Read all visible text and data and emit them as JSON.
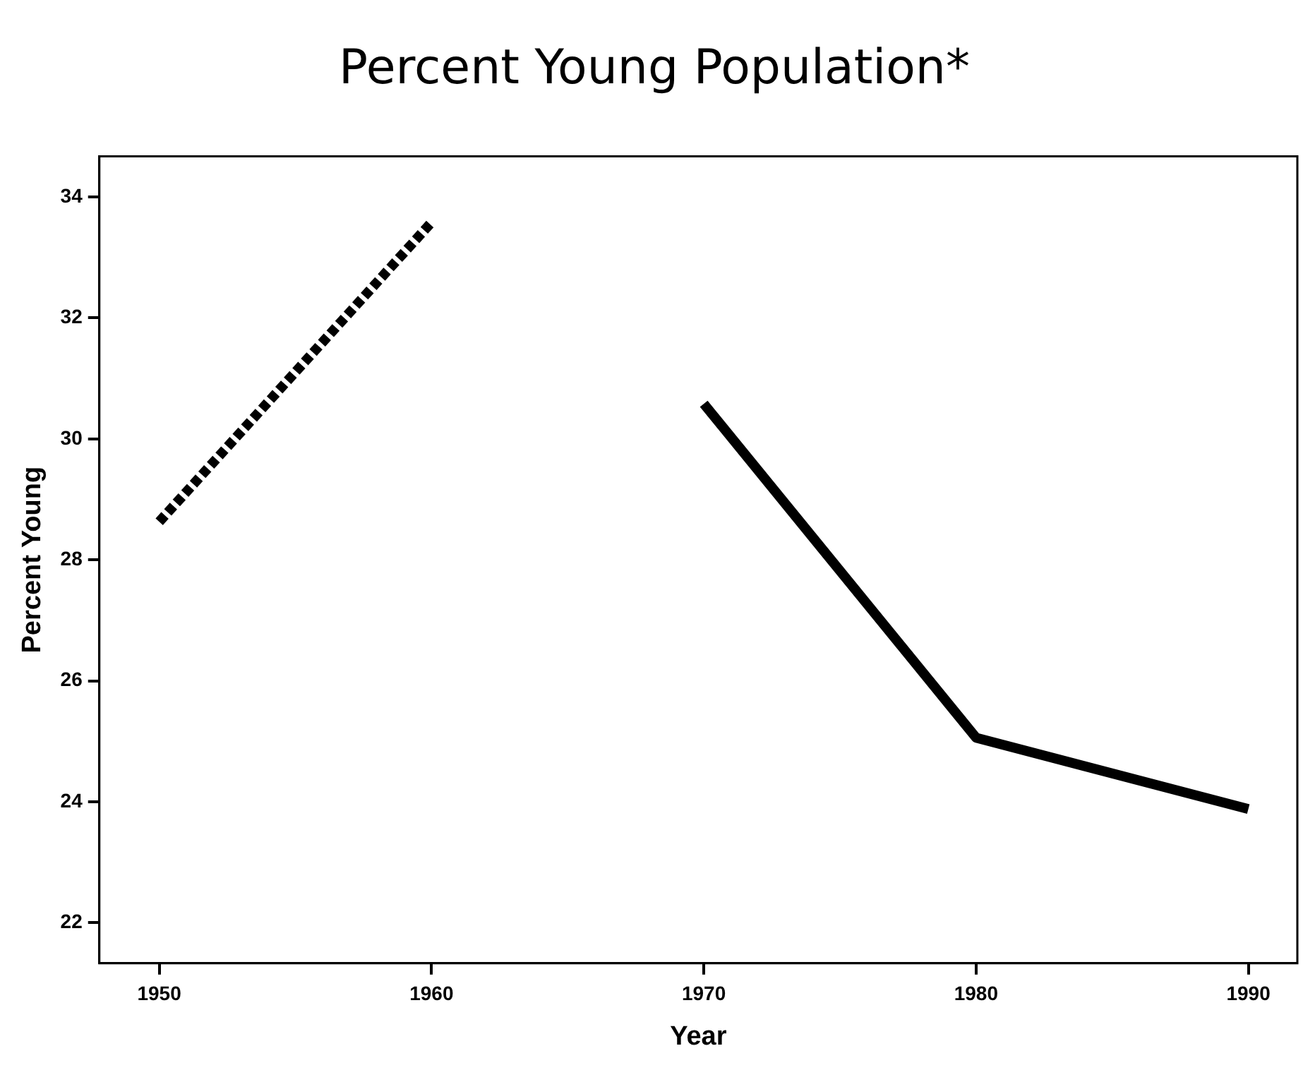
{
  "chart_data": {
    "type": "line",
    "title": "Percent Young Population*",
    "xlabel": "Year",
    "ylabel": "Percent Young",
    "series": [
      {
        "x": [
          1950,
          1960
        ],
        "values": [
          28.63,
          33.58
        ],
        "color": "#000000",
        "line_style": "dashed"
      },
      {
        "x": [
          1970,
          1980,
          1990
        ],
        "values": [
          30.58,
          25.06,
          23.88
        ],
        "color": "#000000",
        "line_style": "solid"
      }
    ],
    "xlim": [
      1947.8,
      1991.8
    ],
    "xticks": [
      1950,
      1960,
      1970,
      1980,
      1990
    ],
    "ylim": [
      21.33,
      34.67
    ],
    "yticks": [
      22,
      24,
      26,
      28,
      30,
      32,
      34
    ],
    "grid": false,
    "legend": false,
    "marker": "none"
  }
}
